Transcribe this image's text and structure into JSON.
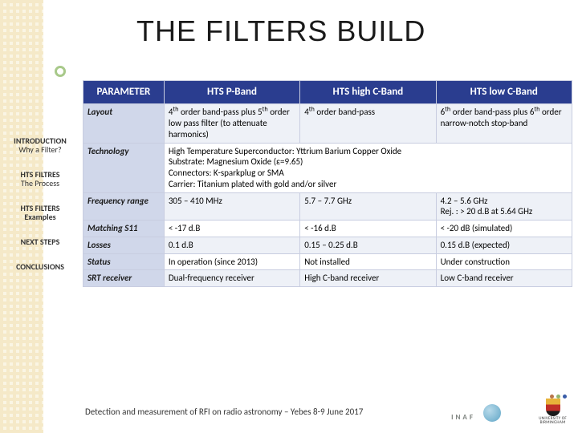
{
  "title": "THE FILTERS BUILD",
  "nav": [
    {
      "h": "INTRODUCTION",
      "s": "Why a Filter?"
    },
    {
      "h": "HTS FILTRES",
      "s": "The Process"
    },
    {
      "h": "HTS FILTERS",
      "s": "Examples",
      "active": true
    },
    {
      "h": "NEXT STEPS",
      "s": ""
    },
    {
      "h": "CONCLUSIONS",
      "s": ""
    }
  ],
  "table": {
    "headers": [
      "PARAMETER",
      "HTS P-Band",
      "HTS high C-Band",
      "HTS low C-Band"
    ],
    "rows": [
      {
        "label": "Layout",
        "cells": [
          "4<span class='sup'>th</span> order band-pass plus 5<span class='sup'>th</span> order low pass filter (to attenuate harmonics)",
          "4<span class='sup'>th</span> order band-pass",
          "6<span class='sup'>th</span> order band-pass plus 6<span class='sup'>th</span> order narrow-notch stop-band"
        ]
      },
      {
        "label": "Technology",
        "span": true,
        "cells": [
          "High Temperature Superconductor: Yttrium Barium Copper Oxide<br>Substrate: Magnesium Oxide (ε=9.65)<br>Connectors: K-sparkplug or SMA<br>Carrier: Titanium plated with gold and/or silver"
        ]
      },
      {
        "label": "Frequency range",
        "cells": [
          "305 – 410 MHz",
          "5.7 – 7.7 GHz",
          "4.2 – 5.6 GHz<br>Rej. : &gt; 20 d.B at 5.64 GHz"
        ]
      },
      {
        "label": "Matching S11",
        "cells": [
          "&lt; -17 d.B",
          "&lt; -16 d.B",
          "&lt; -20 dB (simulated)"
        ]
      },
      {
        "label": "Losses",
        "cells": [
          "0.1 d.B",
          "0.15 – 0.25 d.B",
          "0.15 d.B (expected)"
        ]
      },
      {
        "label": "Status",
        "cells": [
          "In operation (since 2013)",
          "Not installed",
          "Under construction"
        ]
      },
      {
        "label": "SRT receiver",
        "cells": [
          "Dual-frequency receiver",
          "High C-band receiver",
          "Low C-band receiver"
        ]
      }
    ]
  },
  "footer": "Detection and measurement of RFI on radio astronomy – Yebes 8-9 June 2017",
  "logos": {
    "inaf": "INAF",
    "uob_l1": "UNIVERSITY OF",
    "uob_l2": "BIRMINGHAM"
  },
  "colors": {
    "header_bg": "#2a3d8f",
    "param_bg": "#d0d7ea",
    "row_odd": "#eef1f7",
    "dot1": "#b8754a",
    "dot2": "#8fb46e",
    "dot3": "#3a5da8"
  }
}
